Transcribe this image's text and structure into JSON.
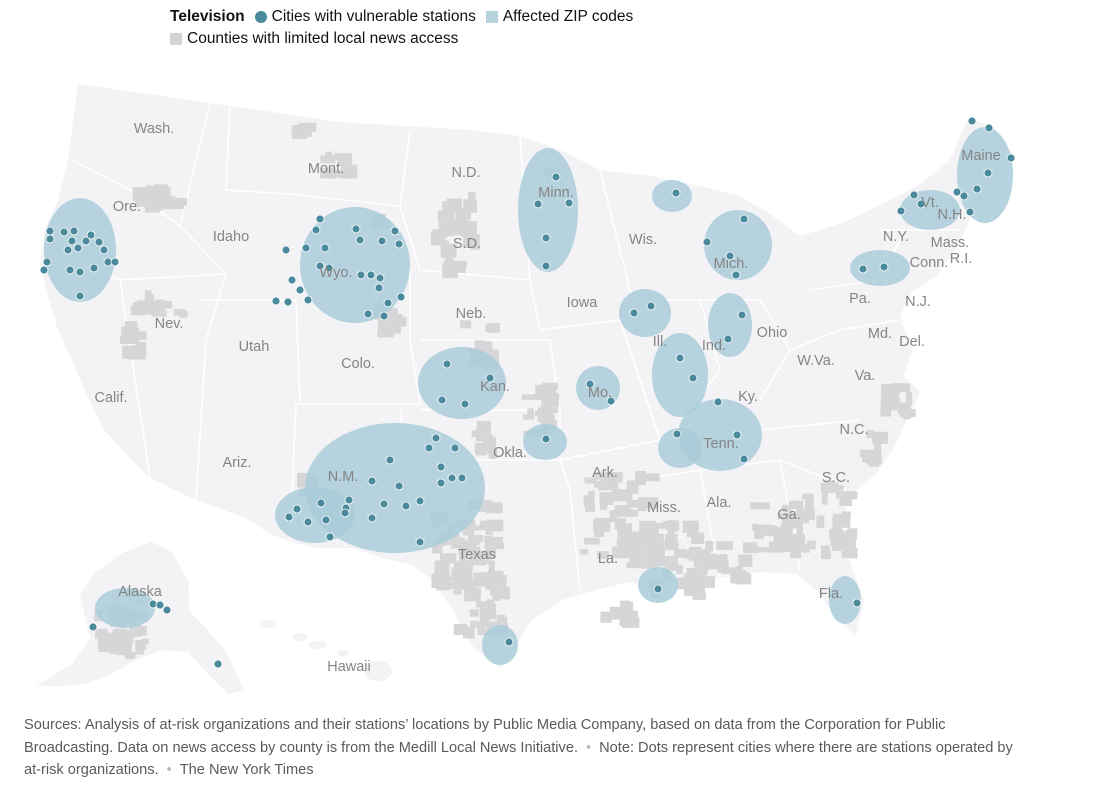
{
  "legend": {
    "title": "Television",
    "items": [
      {
        "label": "Cities with vulnerable stations",
        "kind": "dot",
        "color": "#4a8a9c"
      },
      {
        "label": "Affected ZIP codes",
        "kind": "square",
        "color": "#b6d2dc"
      },
      {
        "label": "Counties with limited local news access",
        "kind": "square",
        "color": "#d3d3d3"
      }
    ]
  },
  "colors": {
    "land": "#f3f2f5",
    "border": "#ffffff",
    "limited_access": "#d6d6d8",
    "affected": "#a9cdd9",
    "dot": "#4a8a9c",
    "label": "#858585"
  },
  "map_labels": [
    "Wash.",
    "Mont.",
    "N.D.",
    "Minn.",
    "Maine",
    "Ore.",
    "Idaho",
    "S.D.",
    "Wis.",
    "Vt.",
    "N.H.",
    "N.Y.",
    "Mass.",
    "Mich.",
    "Wyo.",
    "R.I.",
    "Conn.",
    "Iowa",
    "Pa.",
    "N.J.",
    "Neb.",
    "Nev.",
    "Ohio",
    "Utah",
    "Ill.",
    "Ind.",
    "Md.",
    "Del.",
    "Colo.",
    "W.Va.",
    "Calif.",
    "Kan.",
    "Mo.",
    "Va.",
    "Ky.",
    "N.C.",
    "Tenn.",
    "Okla.",
    "Ariz.",
    "N.M.",
    "S.C.",
    "Ark.",
    "Ala.",
    "Ga.",
    "Miss.",
    "Texas",
    "La.",
    "Alaska",
    "Fla.",
    "Hawaii"
  ],
  "sources": {
    "line1": "Sources: Analysis of at-risk organizations and their stations’ locations by Public Media Company, based on data from the Corporation for Public Broadcasting. Data on news access by county is from the Medill Local News Initiative.",
    "note": "Note: Dots represent cities where there are stations operated by at-risk organizations.",
    "credit": "The New York Times"
  }
}
